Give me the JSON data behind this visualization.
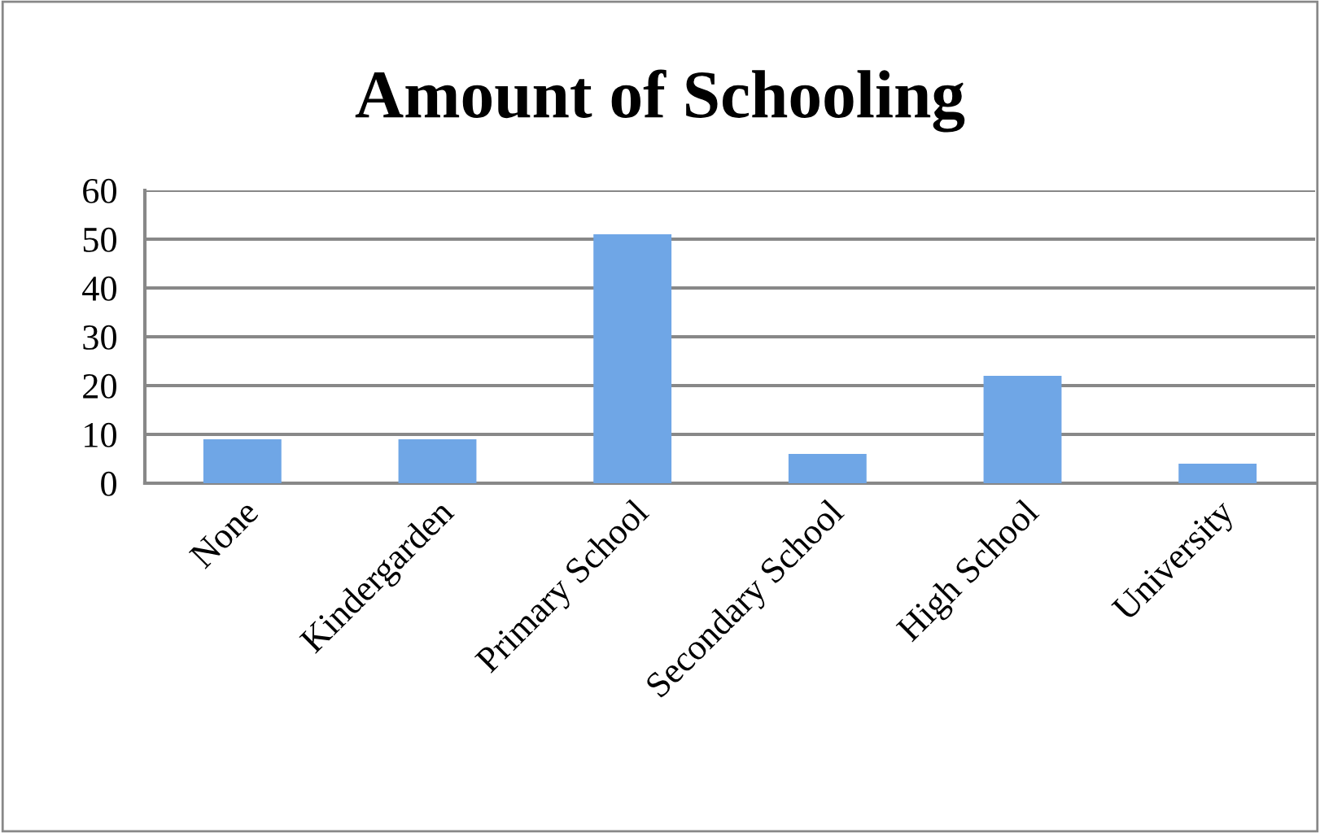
{
  "chart_data": {
    "type": "bar",
    "title": "Amount of Schooling",
    "categories": [
      "None",
      "Kindergarden",
      "Primary School",
      "Secondary School",
      "High School",
      "University"
    ],
    "values": [
      9,
      9,
      51,
      6,
      22,
      4
    ],
    "color": "#6fa6e6",
    "ylim": [
      0,
      60
    ],
    "yticks": [
      0,
      10,
      20,
      30,
      40,
      50,
      60
    ],
    "grid": "y",
    "legend": false
  }
}
